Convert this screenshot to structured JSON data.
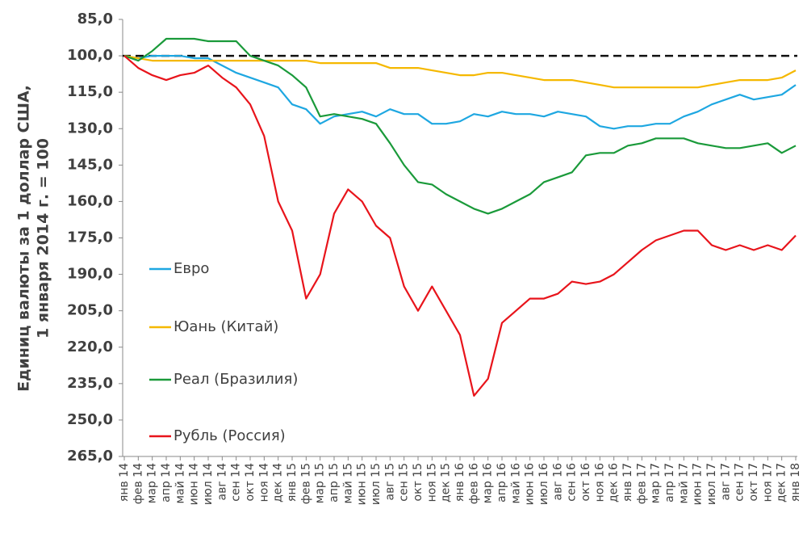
{
  "chart_data": {
    "type": "line",
    "ylabel": [
      "Единиц валюты за 1 доллар США,",
      "1 января 2014 г. = 100"
    ],
    "categories": [
      "янв 14",
      "фев 14",
      "мар 14",
      "апр 14",
      "май 14",
      "июн 14",
      "июл 14",
      "авг 14",
      "сен 14",
      "окт 14",
      "ноя 14",
      "дек 14",
      "янв 15",
      "фев 15",
      "мар 15",
      "апр 15",
      "май 15",
      "июн 15",
      "июл 15",
      "авг 15",
      "сен 15",
      "окт 15",
      "ноя 15",
      "дек 15",
      "янв 16",
      "фев 16",
      "мар 16",
      "апр 16",
      "май 16",
      "июн 16",
      "июл 16",
      "авг 16",
      "сен 16",
      "окт 16",
      "ноя 16",
      "дек 16",
      "янв 17",
      "фев 17",
      "мар 17",
      "апр 17",
      "май 17",
      "июн 17",
      "июл 17",
      "авг 17",
      "сен 17",
      "окт 17",
      "ноя 17",
      "дек 17",
      "янв 18"
    ],
    "series": [
      {
        "name": "Евро",
        "color": "#1ea7e1",
        "values": [
          100,
          101,
          100,
          100,
          100,
          101,
          101,
          104,
          107,
          109,
          111,
          113,
          120,
          122,
          128,
          125,
          124,
          123,
          125,
          122,
          124,
          124,
          128,
          128,
          127,
          124,
          125,
          123,
          124,
          124,
          125,
          123,
          124,
          125,
          129,
          130,
          129,
          129,
          128,
          128,
          125,
          123,
          120,
          118,
          116,
          118,
          117,
          116,
          112
        ]
      },
      {
        "name": "Юань (Китай)",
        "color": "#f5b800",
        "values": [
          100,
          101,
          102,
          102,
          102,
          102,
          102,
          102,
          102,
          102,
          102,
          102,
          102,
          102,
          103,
          103,
          103,
          103,
          103,
          105,
          105,
          105,
          106,
          107,
          108,
          108,
          107,
          107,
          108,
          109,
          110,
          110,
          110,
          111,
          112,
          113,
          113,
          113,
          113,
          113,
          113,
          113,
          112,
          111,
          110,
          110,
          110,
          109,
          106
        ]
      },
      {
        "name": "Реал (Бразилия)",
        "color": "#1a9a3a",
        "values": [
          100,
          102,
          98,
          93,
          93,
          93,
          94,
          94,
          94,
          100,
          102,
          104,
          108,
          113,
          125,
          124,
          125,
          126,
          128,
          136,
          145,
          152,
          153,
          157,
          160,
          163,
          165,
          163,
          160,
          157,
          152,
          150,
          148,
          141,
          140,
          140,
          137,
          136,
          134,
          134,
          134,
          136,
          137,
          138,
          138,
          137,
          136,
          140,
          137
        ]
      },
      {
        "name": "Рубль (Россия)",
        "color": "#e8141b",
        "values": [
          100,
          105,
          108,
          110,
          108,
          107,
          104,
          109,
          113,
          120,
          133,
          160,
          172,
          200,
          190,
          165,
          155,
          160,
          170,
          175,
          195,
          205,
          195,
          205,
          215,
          240,
          233,
          210,
          205,
          200,
          200,
          198,
          193,
          194,
          193,
          190,
          185,
          180,
          176,
          174,
          172,
          172,
          178,
          180,
          178,
          180,
          178,
          180,
          174
        ]
      }
    ],
    "ylim": [
      85,
      265
    ],
    "y_inverted": true,
    "yticks": [
      {
        "value": 85,
        "label": "85,0"
      },
      {
        "value": 100,
        "label": "100,0"
      },
      {
        "value": 115,
        "label": "115,0"
      },
      {
        "value": 130,
        "label": "130,0"
      },
      {
        "value": 145,
        "label": "145,0"
      },
      {
        "value": 160,
        "label": "160,0"
      },
      {
        "value": 175,
        "label": "175,0"
      },
      {
        "value": 190,
        "label": "190,0"
      },
      {
        "value": 205,
        "label": "205,0"
      },
      {
        "value": 220,
        "label": "220,0"
      },
      {
        "value": 235,
        "label": "235,0"
      },
      {
        "value": 250,
        "label": "250,0"
      },
      {
        "value": 265,
        "label": "265,0"
      }
    ],
    "reference_line": 100
  }
}
